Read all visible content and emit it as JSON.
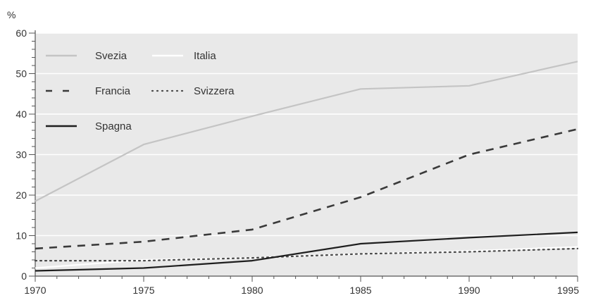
{
  "chart_data": {
    "type": "line",
    "ylabel": "%",
    "xlim": [
      1970,
      1995
    ],
    "ylim": [
      0,
      60
    ],
    "x_ticks": [
      1970,
      1975,
      1980,
      1985,
      1990,
      1995
    ],
    "y_ticks": [
      0,
      10,
      20,
      30,
      40,
      50,
      60
    ],
    "grid": true,
    "legend_position": "top-left",
    "colors": {
      "plot_background": "#e9e9e9",
      "grid": "#ffffff",
      "axis": "#555555"
    },
    "series": [
      {
        "name": "Svezia",
        "color": "#c4c4c4",
        "style": "solid",
        "points": [
          [
            1970,
            18.5
          ],
          [
            1975,
            32.5
          ],
          [
            1980,
            39.5
          ],
          [
            1985,
            46.2
          ],
          [
            1990,
            47
          ],
          [
            1995,
            53
          ]
        ]
      },
      {
        "name": "Italia",
        "color": "#ffffff",
        "style": "solid",
        "points": [
          [
            1970,
            2
          ],
          [
            1975,
            4
          ],
          [
            1980,
            4.5
          ],
          [
            1985,
            5.5
          ],
          [
            1990,
            6.2
          ],
          [
            1995,
            7.2
          ]
        ]
      },
      {
        "name": "Francia",
        "color": "#3a3a3a",
        "style": "dashed",
        "points": [
          [
            1970,
            6.8
          ],
          [
            1975,
            8.5
          ],
          [
            1980,
            11.5
          ],
          [
            1985,
            19.5
          ],
          [
            1990,
            30
          ],
          [
            1995,
            36.3
          ]
        ]
      },
      {
        "name": "Svizzera",
        "color": "#4a4a4a",
        "style": "dotted",
        "points": [
          [
            1970,
            3.8
          ],
          [
            1975,
            3.8
          ],
          [
            1980,
            4.5
          ],
          [
            1985,
            5.5
          ],
          [
            1990,
            6
          ],
          [
            1995,
            6.8
          ]
        ]
      },
      {
        "name": "Spagna",
        "color": "#1e1e1e",
        "style": "solid",
        "points": [
          [
            1970,
            1.3
          ],
          [
            1975,
            2
          ],
          [
            1980,
            3.8
          ],
          [
            1985,
            8
          ],
          [
            1990,
            9.5
          ],
          [
            1995,
            10.8
          ]
        ]
      }
    ]
  }
}
